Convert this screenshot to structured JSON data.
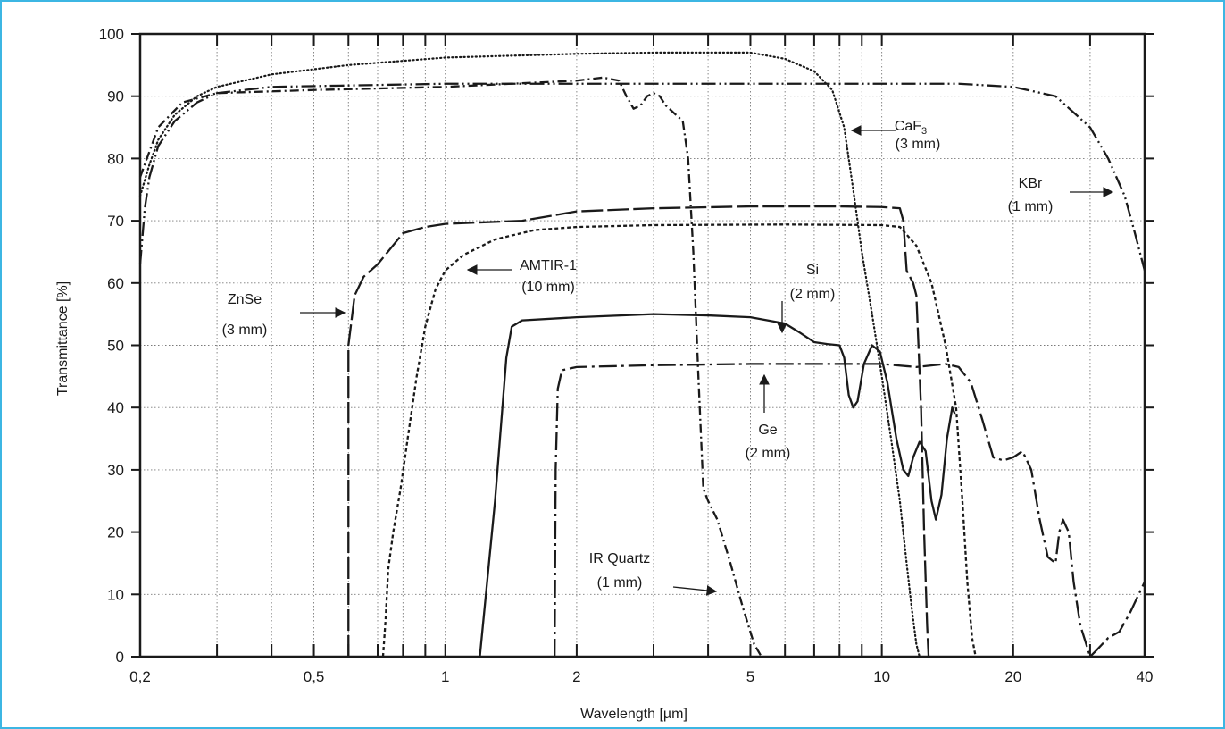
{
  "chart_data": {
    "type": "line",
    "xlabel": "Wavelength [µm]",
    "ylabel": "Transmittance [%]",
    "xscale": "log",
    "xlim": [
      0.2,
      40
    ],
    "ylim": [
      0,
      100
    ],
    "grid": true,
    "x_tick_labels": [
      {
        "value": 0.2,
        "label": "0,2"
      },
      {
        "value": 0.5,
        "label": "0,5"
      },
      {
        "value": 1,
        "label": "1"
      },
      {
        "value": 2,
        "label": "2"
      },
      {
        "value": 5,
        "label": "5"
      },
      {
        "value": 10,
        "label": "10"
      },
      {
        "value": 20,
        "label": "20"
      },
      {
        "value": 40,
        "label": "40"
      }
    ],
    "x_ticks": [
      0.2,
      0.3,
      0.4,
      0.5,
      0.6,
      0.7,
      0.8,
      0.9,
      1,
      2,
      3,
      4,
      5,
      6,
      7,
      8,
      9,
      10,
      20,
      30,
      40
    ],
    "y_ticks": [
      0,
      10,
      20,
      30,
      40,
      50,
      60,
      70,
      80,
      90,
      100
    ],
    "series": [
      {
        "id": "kbr",
        "style": "dash-dot-dot",
        "points": [
          [
            0.2,
            63
          ],
          [
            0.205,
            72
          ],
          [
            0.21,
            77
          ],
          [
            0.22,
            82
          ],
          [
            0.24,
            86
          ],
          [
            0.27,
            89
          ],
          [
            0.3,
            90.5
          ],
          [
            0.4,
            91.5
          ],
          [
            1,
            92
          ],
          [
            5,
            92
          ],
          [
            15,
            92
          ],
          [
            20,
            91.5
          ],
          [
            25,
            90
          ],
          [
            30,
            85
          ],
          [
            33,
            80
          ],
          [
            36,
            74
          ],
          [
            38,
            68
          ],
          [
            40,
            62
          ]
        ]
      },
      {
        "id": "caf",
        "style": "dotted",
        "points": [
          [
            0.2,
            74
          ],
          [
            0.21,
            79
          ],
          [
            0.22,
            83
          ],
          [
            0.24,
            87
          ],
          [
            0.27,
            90
          ],
          [
            0.3,
            91.5
          ],
          [
            0.4,
            93.5
          ],
          [
            0.6,
            95
          ],
          [
            1,
            96.2
          ],
          [
            2,
            96.8
          ],
          [
            3,
            97
          ],
          [
            5,
            97
          ],
          [
            6,
            96
          ],
          [
            7,
            94
          ],
          [
            7.7,
            91
          ],
          [
            8.2,
            85
          ],
          [
            8.6,
            75
          ],
          [
            9,
            65
          ],
          [
            9.5,
            55
          ],
          [
            10,
            45
          ],
          [
            10.5,
            35
          ],
          [
            11,
            25
          ],
          [
            11.4,
            15
          ],
          [
            11.7,
            8
          ],
          [
            12,
            2
          ],
          [
            12.2,
            0
          ]
        ]
      },
      {
        "id": "quartz",
        "style": "dash-dot",
        "points": [
          [
            0.2,
            77
          ],
          [
            0.22,
            85
          ],
          [
            0.25,
            89
          ],
          [
            0.3,
            90.5
          ],
          [
            0.5,
            91
          ],
          [
            1,
            91.5
          ],
          [
            2,
            92.5
          ],
          [
            2.3,
            93
          ],
          [
            2.5,
            92.5
          ],
          [
            2.6,
            90
          ],
          [
            2.7,
            88
          ],
          [
            2.8,
            88.5
          ],
          [
            2.9,
            90
          ],
          [
            3,
            90.5
          ],
          [
            3.1,
            90
          ],
          [
            3.2,
            88.5
          ],
          [
            3.5,
            86
          ],
          [
            3.6,
            80
          ],
          [
            3.7,
            65
          ],
          [
            3.8,
            45
          ],
          [
            3.9,
            27
          ],
          [
            4,
            25
          ],
          [
            4.2,
            22
          ],
          [
            4.5,
            15
          ],
          [
            4.8,
            8
          ],
          [
            5.1,
            2
          ],
          [
            5.3,
            0
          ]
        ]
      },
      {
        "id": "znse",
        "style": "long-dash",
        "points": [
          [
            0.6,
            0
          ],
          [
            0.6,
            50
          ],
          [
            0.62,
            58
          ],
          [
            0.65,
            61
          ],
          [
            0.7,
            63
          ],
          [
            0.8,
            68
          ],
          [
            0.9,
            69
          ],
          [
            1,
            69.5
          ],
          [
            1.5,
            70
          ],
          [
            2,
            71.5
          ],
          [
            3,
            72
          ],
          [
            5,
            72.3
          ],
          [
            8,
            72.3
          ],
          [
            10,
            72.2
          ],
          [
            11,
            72
          ],
          [
            11.2,
            70
          ],
          [
            11.4,
            62
          ],
          [
            11.8,
            60
          ],
          [
            12,
            58
          ],
          [
            12.3,
            40
          ],
          [
            12.5,
            20
          ],
          [
            12.7,
            5
          ],
          [
            12.8,
            0
          ]
        ]
      },
      {
        "id": "amtir",
        "style": "short-dash",
        "points": [
          [
            0.72,
            0
          ],
          [
            0.73,
            6
          ],
          [
            0.74,
            14
          ],
          [
            0.76,
            20
          ],
          [
            0.79,
            27
          ],
          [
            0.82,
            35
          ],
          [
            0.86,
            45
          ],
          [
            0.9,
            53
          ],
          [
            0.95,
            59
          ],
          [
            1,
            62
          ],
          [
            1.1,
            64.5
          ],
          [
            1.3,
            67
          ],
          [
            1.6,
            68.5
          ],
          [
            2,
            69
          ],
          [
            3,
            69.3
          ],
          [
            6,
            69.4
          ],
          [
            10,
            69.3
          ],
          [
            11,
            69
          ],
          [
            12,
            66
          ],
          [
            13,
            60
          ],
          [
            14,
            50
          ],
          [
            14.8,
            40
          ],
          [
            15.3,
            25
          ],
          [
            15.7,
            12
          ],
          [
            16.1,
            3
          ],
          [
            16.4,
            0
          ]
        ]
      },
      {
        "id": "si",
        "style": "solid",
        "points": [
          [
            1.2,
            0
          ],
          [
            1.3,
            25
          ],
          [
            1.38,
            48
          ],
          [
            1.42,
            53
          ],
          [
            1.5,
            54
          ],
          [
            2,
            54.5
          ],
          [
            3,
            55
          ],
          [
            4,
            54.8
          ],
          [
            5,
            54.5
          ],
          [
            6,
            53.5
          ],
          [
            6.5,
            52
          ],
          [
            7,
            50.5
          ],
          [
            7.5,
            50.2
          ],
          [
            8,
            50
          ],
          [
            8.2,
            48
          ],
          [
            8.4,
            42
          ],
          [
            8.6,
            40
          ],
          [
            8.8,
            41
          ],
          [
            9.1,
            47
          ],
          [
            9.5,
            50
          ],
          [
            9.9,
            49
          ],
          [
            10.3,
            44
          ],
          [
            10.8,
            35
          ],
          [
            11.2,
            30
          ],
          [
            11.5,
            29
          ],
          [
            11.8,
            32
          ],
          [
            12.2,
            34.5
          ],
          [
            12.6,
            33
          ],
          [
            13,
            25
          ],
          [
            13.3,
            22
          ],
          [
            13.7,
            26
          ],
          [
            14.1,
            35
          ],
          [
            14.5,
            40
          ],
          [
            14.7,
            39
          ]
        ]
      },
      {
        "id": "ge",
        "style": "long-dash-dot",
        "points": [
          [
            1.78,
            0
          ],
          [
            1.79,
            30
          ],
          [
            1.81,
            43
          ],
          [
            1.85,
            46
          ],
          [
            2,
            46.5
          ],
          [
            3,
            46.8
          ],
          [
            5,
            47
          ],
          [
            8,
            47
          ],
          [
            10,
            47
          ],
          [
            12,
            46.5
          ],
          [
            14,
            47
          ],
          [
            15,
            46.5
          ],
          [
            16,
            44
          ],
          [
            17,
            38
          ],
          [
            18,
            32
          ],
          [
            19,
            31.5
          ],
          [
            20,
            32
          ],
          [
            21,
            33
          ],
          [
            22,
            30
          ],
          [
            23,
            22
          ],
          [
            24,
            16
          ],
          [
            25,
            15
          ],
          [
            25.5,
            20
          ],
          [
            26,
            22
          ],
          [
            26.8,
            20
          ],
          [
            27.5,
            12
          ],
          [
            28.5,
            5
          ],
          [
            30,
            0
          ],
          [
            31,
            1
          ],
          [
            33,
            3
          ],
          [
            35,
            4
          ],
          [
            37,
            7
          ],
          [
            40,
            12
          ]
        ]
      }
    ],
    "annotations": [
      {
        "id": "ann-caf",
        "lines": [
          "CaF3",
          "(3 mm)"
        ],
        "subscript": "3"
      },
      {
        "id": "ann-kbr",
        "lines": [
          "KBr",
          "(1 mm)"
        ]
      },
      {
        "id": "ann-amtir",
        "lines": [
          "AMTIR-1",
          "(10 mm)"
        ]
      },
      {
        "id": "ann-znse",
        "lines": [
          "ZnSe",
          "(3 mm)"
        ]
      },
      {
        "id": "ann-si",
        "lines": [
          "Si",
          "(2 mm)"
        ]
      },
      {
        "id": "ann-ge",
        "lines": [
          "Ge",
          "(2 mm)"
        ]
      },
      {
        "id": "ann-quartz",
        "lines": [
          "IR Quartz",
          "(1 mm)"
        ]
      }
    ]
  },
  "colors": {
    "frame": "#3cb6e3",
    "ink": "#1a1a1a",
    "grid": "#7a7a7a"
  }
}
